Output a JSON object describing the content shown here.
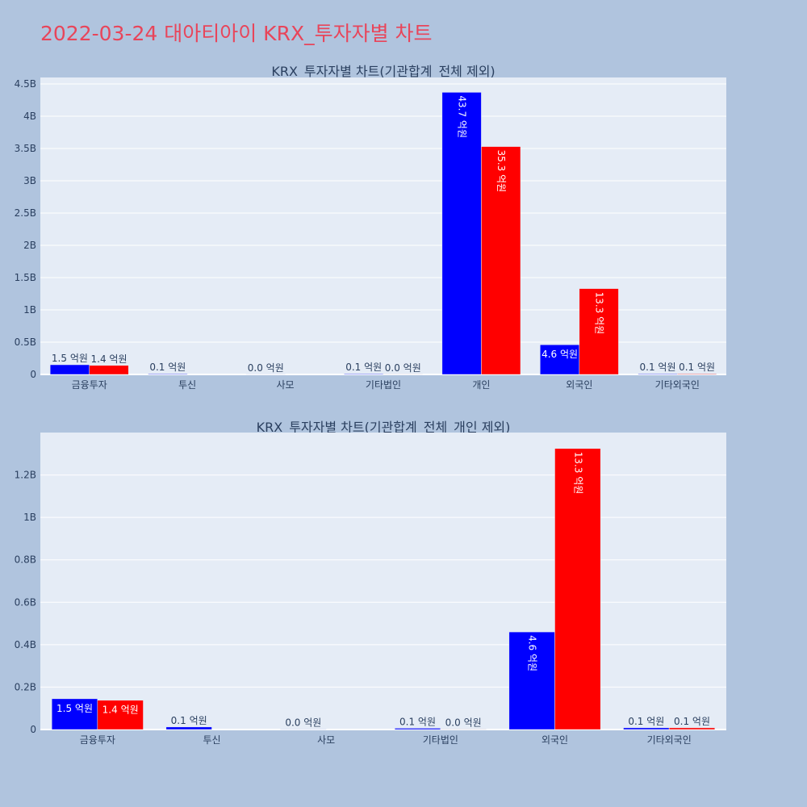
{
  "page": {
    "title": "2022-03-24 대아티아이 KRX_투자자별 차트"
  },
  "colors": {
    "background": "#b0c4de",
    "plot_bg": "#e5ecf6",
    "grid": "#ffffff",
    "title": "#e8455a",
    "text": "#2a3f5f",
    "series_a": "#0000ff",
    "series_b": "#ff0000"
  },
  "chart_data": [
    {
      "type": "bar",
      "title": "KRX_투자자별 차트(기관합계_전체 제외)",
      "xlabel": "",
      "ylabel": "",
      "categories": [
        "금융투자",
        "투신",
        "사모",
        "기타법인",
        "개인",
        "외국인",
        "기타외국인"
      ],
      "ylim": [
        0,
        4.6
      ],
      "yticks": [
        0,
        0.5,
        1,
        1.5,
        2,
        2.5,
        3,
        3.5,
        4,
        4.5
      ],
      "ytick_labels": [
        "0",
        "0.5B",
        "1B",
        "1.5B",
        "2B",
        "2.5B",
        "3B",
        "3.5B",
        "4B",
        "4.5B"
      ],
      "grid": true,
      "series": [
        {
          "color": "#0000ff",
          "values": [
            0.15,
            0.01,
            0.002,
            0.01,
            4.37,
            0.46,
            0.01
          ],
          "labels": [
            "1.5 억원",
            "0.1 억원",
            "0.0 억원",
            "0.1 억원",
            "43.7 억원",
            "4.6 억원",
            "0.1 억원"
          ]
        },
        {
          "color": "#ff0000",
          "values": [
            0.14,
            null,
            null,
            0.002,
            3.53,
            1.33,
            0.01
          ],
          "labels": [
            "1.4 억원",
            "",
            "",
            "0.0 억원",
            "35.3 억원",
            "13.3 억원",
            "0.1 억원"
          ]
        }
      ]
    },
    {
      "type": "bar",
      "title": "KRX_투자자별 차트(기관합계_전체_개인 제외)",
      "xlabel": "",
      "ylabel": "",
      "categories": [
        "금융투자",
        "투신",
        "사모",
        "기타법인",
        "외국인",
        "기타외국인"
      ],
      "ylim": [
        0,
        1.4
      ],
      "yticks": [
        0,
        0.2,
        0.4,
        0.6,
        0.8,
        1.0,
        1.2
      ],
      "ytick_labels": [
        "0",
        "0.2B",
        "0.4B",
        "0.6B",
        "0.8B",
        "1B",
        "1.2B"
      ],
      "grid": true,
      "series": [
        {
          "color": "#0000ff",
          "values": [
            0.145,
            0.012,
            0.002,
            0.006,
            0.46,
            0.008
          ],
          "labels": [
            "1.5 억원",
            "0.1 억원",
            "0.0 억원",
            "0.1 억원",
            "4.6 억원",
            "0.1 억원"
          ]
        },
        {
          "color": "#ff0000",
          "values": [
            0.138,
            null,
            null,
            0.002,
            1.325,
            0.008
          ],
          "labels": [
            "1.4 억원",
            "",
            "",
            "0.0 억원",
            "13.3 억원",
            "0.1 억원"
          ]
        }
      ]
    }
  ]
}
